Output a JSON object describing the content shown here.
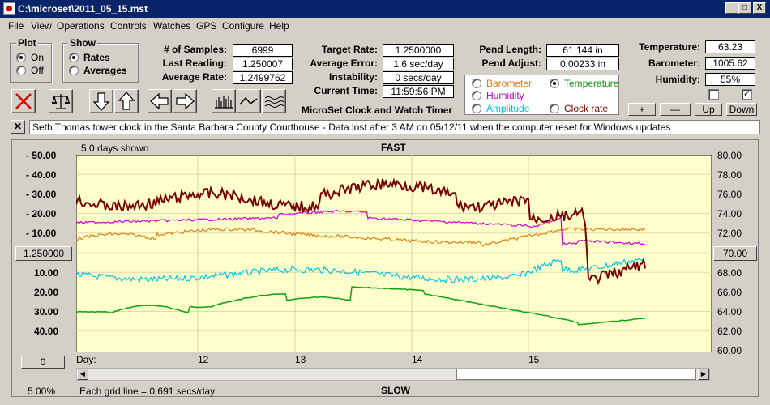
{
  "window": {
    "title": "C:\\microset\\2011_05_15.mst",
    "min": "_",
    "max": "□",
    "close": "X"
  },
  "menu": [
    "File",
    "View",
    "Operations",
    "Controls",
    "Watches",
    "GPS",
    "Configure",
    "Help"
  ],
  "plot_group": {
    "title": "Plot",
    "on": "On",
    "off": "Off",
    "selected": "On"
  },
  "show_group": {
    "title": "Show",
    "rates": "Rates",
    "averages": "Averages",
    "selected": "Rates"
  },
  "stats": {
    "samples_label": "# of Samples:",
    "samples": "6999",
    "last_label": "Last Reading:",
    "last": "1.250007",
    "avg_label": "Average Rate:",
    "avg": "1.2499762"
  },
  "rates": {
    "target_label": "Target Rate:",
    "target": "1.2500000",
    "avg_err_label": "Average Error:",
    "avg_err": "1.6 sec/day",
    "instab_label": "Instability:",
    "instab": "0 secs/day",
    "time_label": "Current Time:",
    "time": "11:59:56 PM",
    "timer_title": "MicroSet Clock and Watch Timer"
  },
  "pend": {
    "len_label": "Pend Length:",
    "len": "61.144 in",
    "adj_label": "Pend Adjust:",
    "adj": "0.00233 in"
  },
  "sensors": [
    {
      "label": "Barometer",
      "color": "#e07a10",
      "selected": false
    },
    {
      "label": "Temperature",
      "color": "#10a010",
      "selected": true
    },
    {
      "label": "Humidity",
      "color": "#c000c0",
      "selected": false
    },
    {
      "label": "Clock rate",
      "color": "#7a0000",
      "selected": false
    },
    {
      "label": "Amplitude",
      "color": "#00c0e0",
      "selected": false
    }
  ],
  "env": {
    "temp_label": "Temperature:",
    "temp": "63.23",
    "baro_label": "Barometer:",
    "baro": "1005.62",
    "hum_label": "Humidity:",
    "hum": "55%"
  },
  "scale_buttons": {
    "plus": "+",
    "minus": "—",
    "up": "Up",
    "down": "Down"
  },
  "note": "Seth Thomas tower clock in the Santa Barbara County Courthouse - Data lost after 3 AM on 05/12/11 when the computer reset for Windows updates",
  "chart_header": {
    "days_shown": "5.0 days shown",
    "fast": "FAST",
    "slow": "SLOW",
    "day_label": "Day:",
    "grid_note": "Each grid line = 0.691 secs/day",
    "pct": "5.00%"
  },
  "left_axis": [
    "- 50.00",
    "- 40.00",
    "- 30.00",
    "- 20.00",
    "- 10.00",
    "10.00",
    "20.00",
    "30.00",
    "40.00"
  ],
  "center_button": "1.250000",
  "offset_button": "0",
  "right_axis": [
    "80.00",
    "78.00",
    "76.00",
    "74.00",
    "72.00",
    "70.00",
    "68.00",
    "66.00",
    "64.00",
    "62.00",
    "60.00"
  ],
  "right_center_button": "70.00",
  "days": [
    "12",
    "13",
    "14",
    "15"
  ],
  "colors": {
    "plot_bg": "#ffffcc",
    "grid": "#c8c8a0",
    "rate": "#7a0000",
    "humidity": "#cc00cc",
    "barometer": "#e08010",
    "amplitude": "#00c8e8",
    "temperature": "#10a010"
  }
}
